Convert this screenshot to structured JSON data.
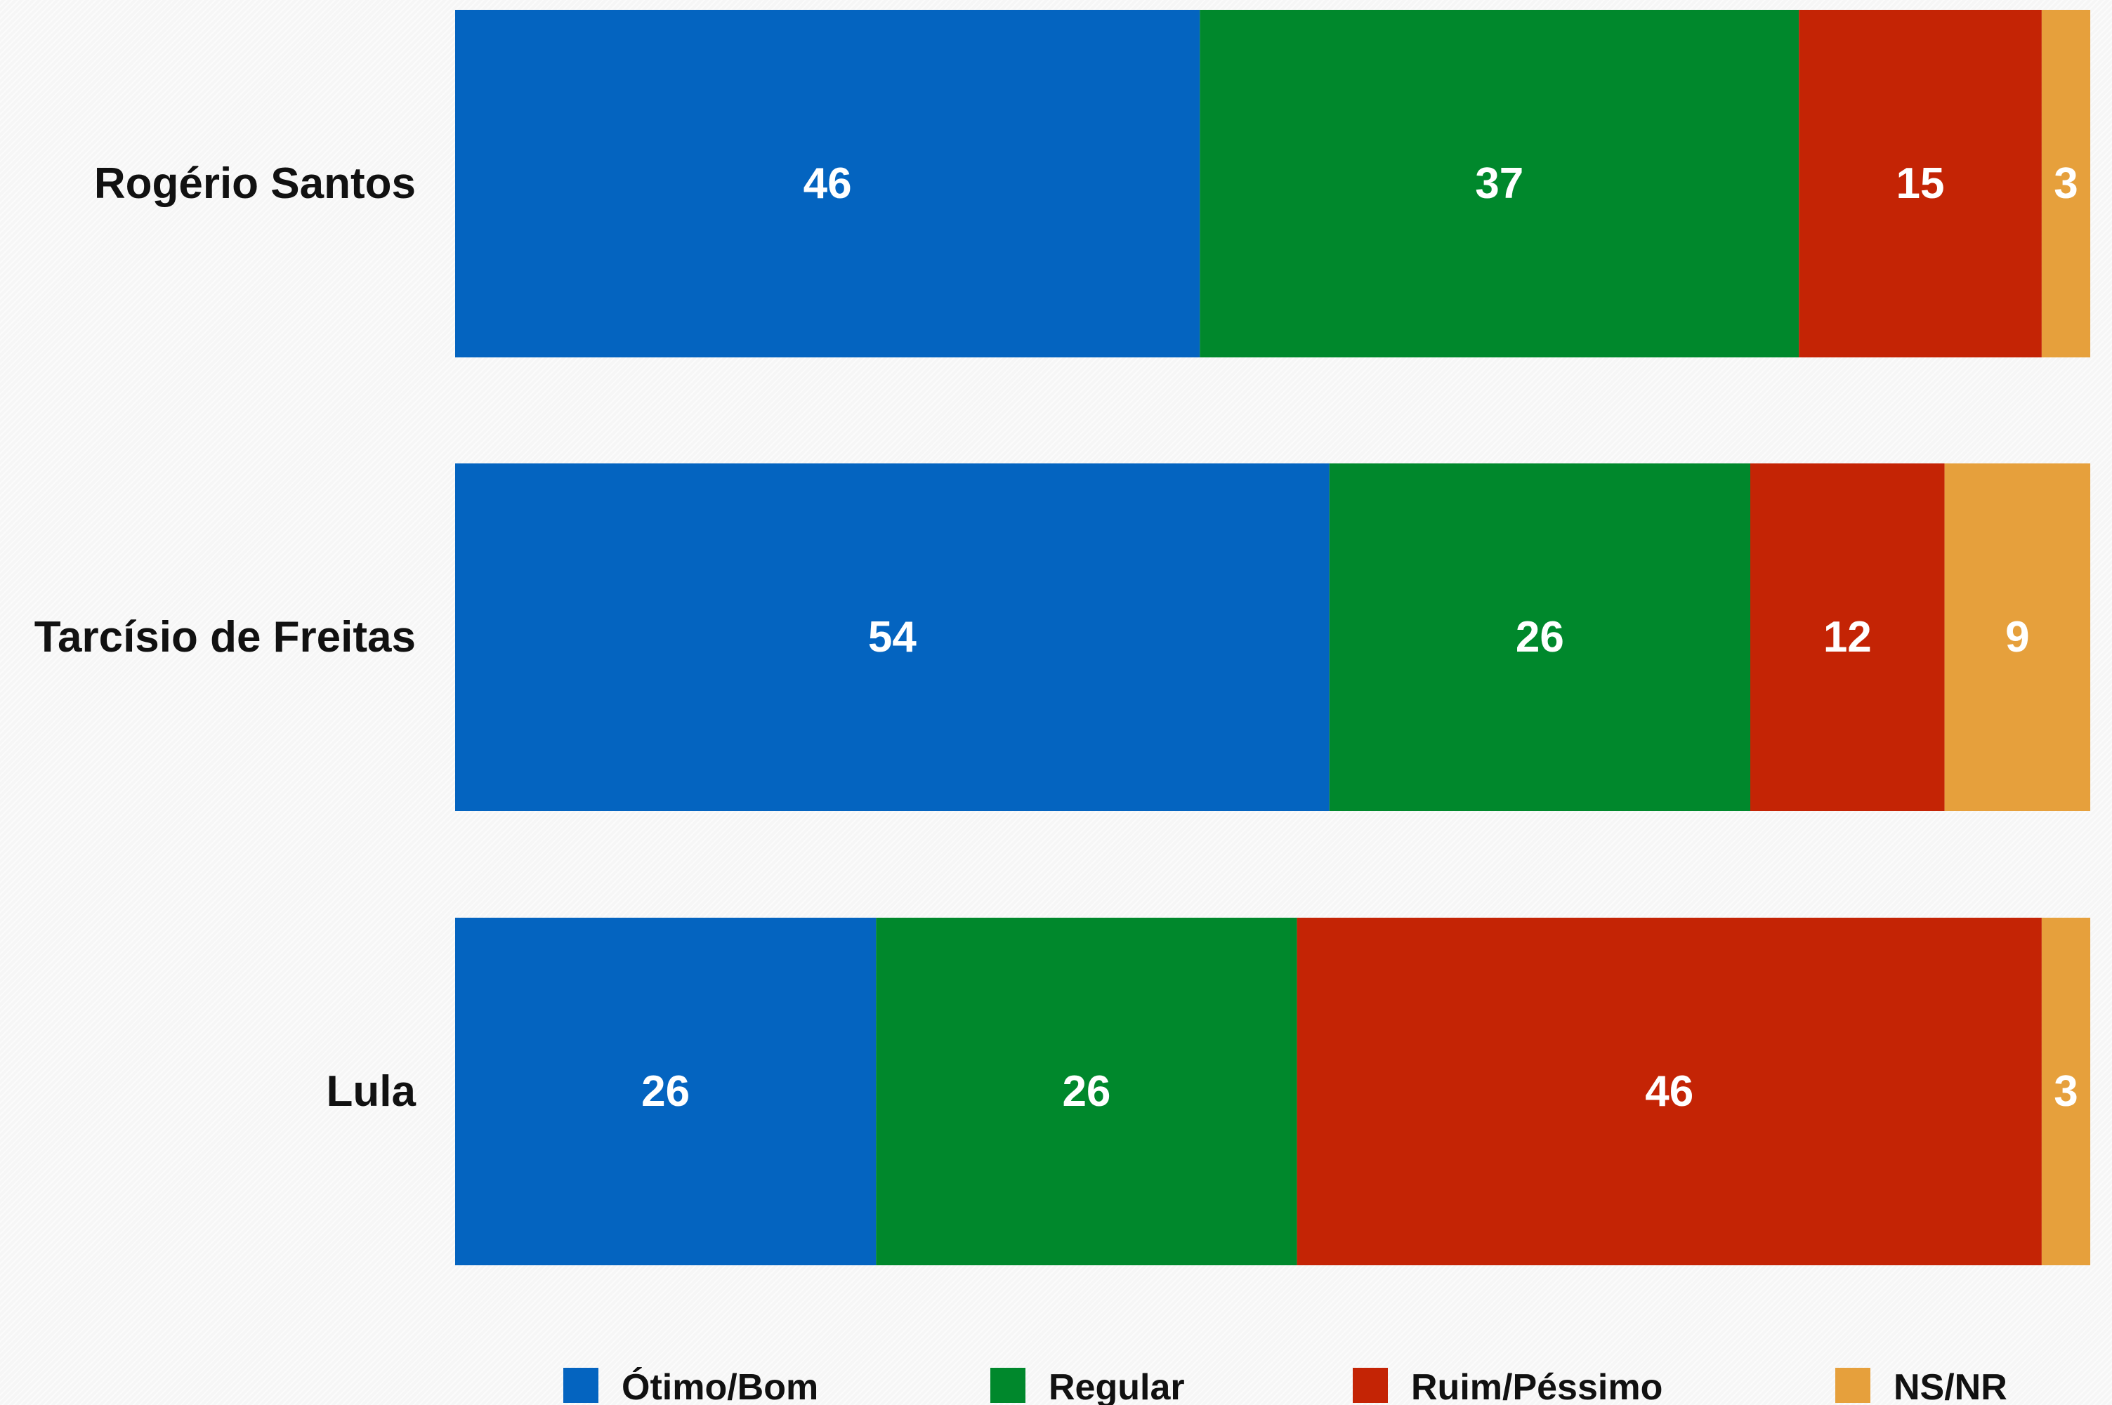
{
  "chart_data": {
    "type": "bar",
    "orientation": "horizontal",
    "stacked": true,
    "categories": [
      "Rogério Santos",
      "Tarcísio de Freitas",
      "Lula"
    ],
    "series": [
      {
        "name": "Ótimo/Bom",
        "values": [
          46,
          54,
          26
        ],
        "color": "#0464c0"
      },
      {
        "name": "Regular",
        "values": [
          37,
          26,
          26
        ],
        "color": "#00882c"
      },
      {
        "name": "Ruim/Péssimo",
        "values": [
          15,
          12,
          46
        ],
        "color": "#c42405"
      },
      {
        "name": "NS/NR",
        "values": [
          3,
          9,
          3
        ],
        "color": "#e6a03c"
      }
    ],
    "legend_position": "bottom",
    "grid": false,
    "xlim": [
      0,
      100
    ]
  }
}
